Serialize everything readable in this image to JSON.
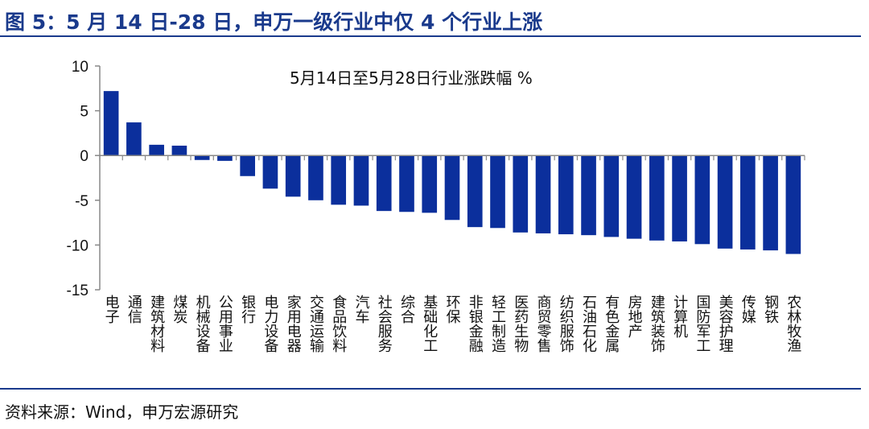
{
  "figure": {
    "title": "图 5：5 月 14 日-28 日，申万一级行业中仅 4 个行业上涨",
    "source": "资料来源：Wind，申万宏源研究"
  },
  "colors": {
    "bar": "#0b2f9c",
    "header": "#1a3a8c",
    "axis": "#888888"
  },
  "chart_data": {
    "type": "bar",
    "title": "5月14日至5月28日行业涨跌幅 %",
    "xlabel": "",
    "ylabel": "",
    "ylim": [
      -15,
      10
    ],
    "yticks": [
      10,
      5,
      0,
      -5,
      -10,
      -15
    ],
    "grid": false,
    "legend": "none",
    "categories": [
      "电子",
      "通信",
      "建筑材料",
      "煤炭",
      "机械设备",
      "公用事业",
      "银行",
      "电力设备",
      "家用电器",
      "交通运输",
      "食品饮料",
      "汽车",
      "社会服务",
      "综合",
      "基础化工",
      "环保",
      "非银金融",
      "轻工制造",
      "医药生物",
      "商贸零售",
      "纺织服饰",
      "石油石化",
      "有色金属",
      "房地产",
      "建筑装饰",
      "计算机",
      "国防军工",
      "美容护理",
      "传媒",
      "钢铁",
      "农林牧渔"
    ],
    "values": [
      7.2,
      3.7,
      1.2,
      1.1,
      -0.5,
      -0.6,
      -2.3,
      -3.7,
      -4.6,
      -5.0,
      -5.5,
      -5.6,
      -6.2,
      -6.3,
      -6.4,
      -7.2,
      -8.0,
      -8.1,
      -8.6,
      -8.7,
      -8.8,
      -8.9,
      -9.1,
      -9.3,
      -9.5,
      -9.6,
      -9.9,
      -10.4,
      -10.5,
      -10.6,
      -11.0
    ]
  }
}
